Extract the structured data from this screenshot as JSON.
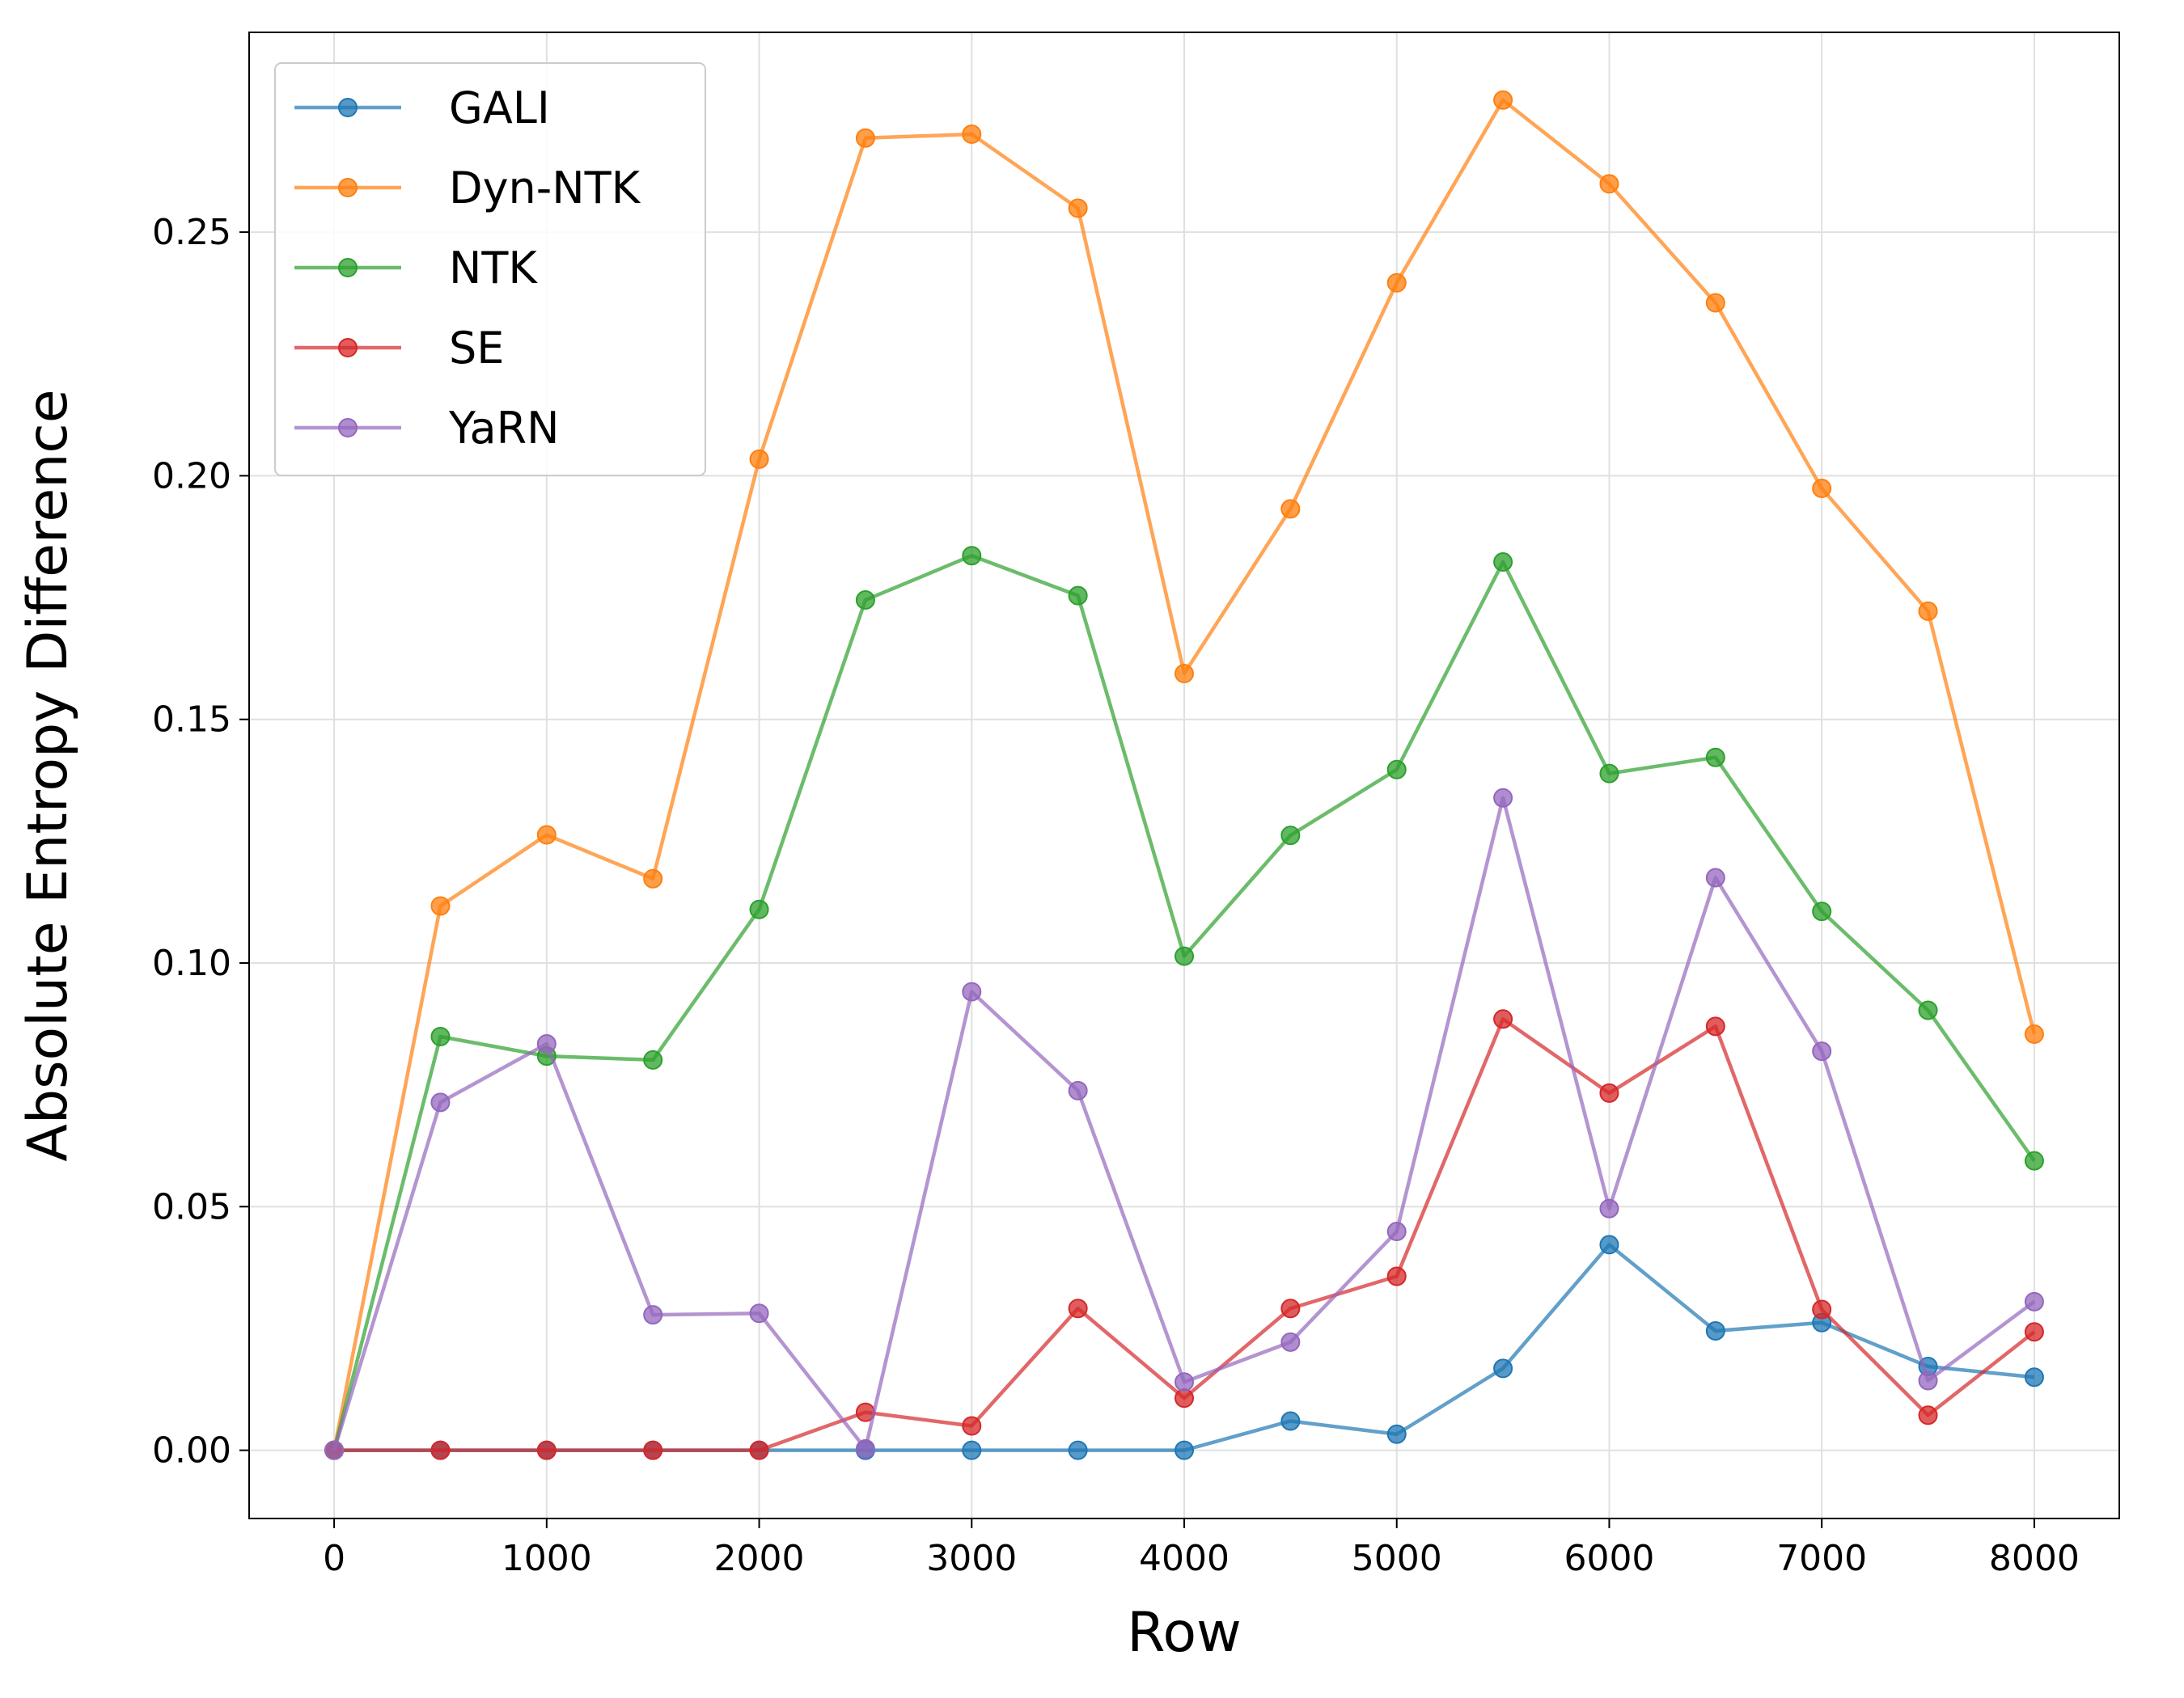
{
  "chart_data": {
    "type": "line",
    "title": "",
    "xlabel": "Row",
    "ylabel": "Absolute Entropy Difference",
    "xlim": [
      -400,
      8400
    ],
    "ylim": [
      -0.014,
      0.291
    ],
    "x_ticks": [
      0,
      1000,
      2000,
      3000,
      4000,
      5000,
      6000,
      7000,
      8000
    ],
    "x_tick_labels": [
      "0",
      "1000",
      "2000",
      "3000",
      "4000",
      "5000",
      "6000",
      "7000",
      "8000"
    ],
    "y_ticks": [
      0.0,
      0.05,
      0.1,
      0.15,
      0.2,
      0.25
    ],
    "y_tick_labels": [
      "0.00",
      "0.05",
      "0.10",
      "0.15",
      "0.20",
      "0.25"
    ],
    "grid": true,
    "legend_position": "top-left",
    "x": [
      0,
      500,
      1000,
      1500,
      2000,
      2500,
      3000,
      3500,
      4000,
      4500,
      5000,
      5500,
      6000,
      6500,
      7000,
      7500,
      8000
    ],
    "series": [
      {
        "name": "GALI",
        "color": "#1f77b4",
        "values": [
          0,
          0,
          0,
          0,
          0,
          0,
          0,
          0,
          0,
          0.006,
          0.0033,
          0.0168,
          0.0422,
          0.0245,
          0.0262,
          0.0172,
          0.015
        ]
      },
      {
        "name": "Dyn-NTK",
        "color": "#ff7f0e",
        "values": [
          0,
          0.1117,
          0.1263,
          0.1173,
          0.2034,
          0.2693,
          0.2701,
          0.2549,
          0.1594,
          0.1932,
          0.2396,
          0.2771,
          0.2599,
          0.2355,
          0.1974,
          0.1722,
          0.0854
        ]
      },
      {
        "name": "NTK",
        "color": "#2ca02c",
        "values": [
          0,
          0.0849,
          0.0809,
          0.0801,
          0.111,
          0.1745,
          0.1836,
          0.1754,
          0.1014,
          0.1262,
          0.1397,
          0.1823,
          0.1389,
          0.1422,
          0.1106,
          0.0903,
          0.0594
        ]
      },
      {
        "name": "SE",
        "color": "#d62728",
        "values": [
          0,
          0,
          0,
          0,
          0,
          0.0078,
          0.005,
          0.0291,
          0.0107,
          0.0291,
          0.0357,
          0.0885,
          0.0733,
          0.087,
          0.0289,
          0.0072,
          0.0243
        ]
      },
      {
        "name": "YaRN",
        "color": "#9467bd",
        "values": [
          0,
          0.0714,
          0.0834,
          0.0278,
          0.0281,
          0.0003,
          0.0941,
          0.0738,
          0.014,
          0.0222,
          0.0449,
          0.1339,
          0.0496,
          0.1175,
          0.0819,
          0.0143,
          0.0305
        ]
      }
    ]
  }
}
